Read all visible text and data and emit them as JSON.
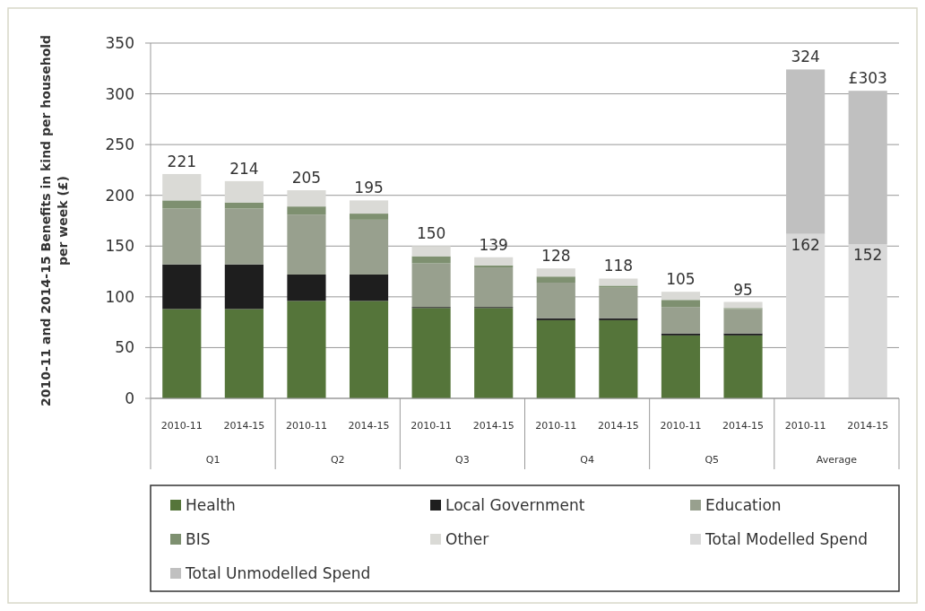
{
  "chart_data": {
    "type": "bar",
    "stacked": true,
    "ylabel": "2010-11 and 2014-15 Benefits in kind per household per week (£)",
    "categories": [
      "2010-11",
      "2014-15",
      "2010-11",
      "2014-15",
      "2010-11",
      "2014-15",
      "2010-11",
      "2014-15",
      "2010-11",
      "2014-15",
      "2010-11",
      "2014-15"
    ],
    "annotations": [
      "Q1",
      "Q2",
      "Q3",
      "Q4",
      "Q5",
      "Average"
    ],
    "ylim": [
      0,
      350
    ],
    "yticks": [
      0,
      50,
      100,
      150,
      200,
      250,
      300,
      350
    ],
    "grid": "y",
    "legend": "bottom",
    "series": [
      {
        "name": "Health",
        "color": "#55753a",
        "values": [
          88,
          88,
          96,
          96,
          89,
          89,
          77,
          77,
          62,
          62,
          null,
          null
        ]
      },
      {
        "name": "Local Government",
        "color": "#1e1e1e",
        "values": [
          44,
          44,
          26,
          26,
          1,
          1,
          2,
          2,
          2,
          2,
          null,
          null
        ]
      },
      {
        "name": "Education",
        "color": "#98a08e",
        "values": [
          55,
          55,
          59,
          54,
          43,
          39,
          35,
          30,
          26,
          24,
          null,
          null
        ]
      },
      {
        "name": "BIS",
        "color": "#7e9070",
        "values": [
          8,
          6,
          8,
          6,
          7,
          2,
          6,
          2,
          7,
          1,
          null,
          null
        ]
      },
      {
        "name": "Other",
        "color": "#dadad6",
        "values": [
          26,
          21,
          16,
          13,
          10,
          8,
          8,
          7,
          8,
          6,
          null,
          null
        ]
      },
      {
        "name": "Total Modelled Spend",
        "color": "#d9d9d9",
        "values": [
          null,
          null,
          null,
          null,
          null,
          null,
          null,
          null,
          null,
          null,
          162,
          152
        ],
        "value_labels": [
          null,
          null,
          null,
          null,
          null,
          null,
          null,
          null,
          null,
          null,
          "162",
          "152"
        ]
      },
      {
        "name": "Total Unmodelled Spend",
        "color": "#c0c0c0",
        "values": [
          null,
          null,
          null,
          null,
          null,
          null,
          null,
          null,
          null,
          null,
          162,
          151
        ]
      }
    ],
    "totals": [
      "221",
      "214",
      "205",
      "195",
      "150",
      "139",
      "128",
      "118",
      "105",
      "95",
      "324",
      "£303"
    ]
  }
}
